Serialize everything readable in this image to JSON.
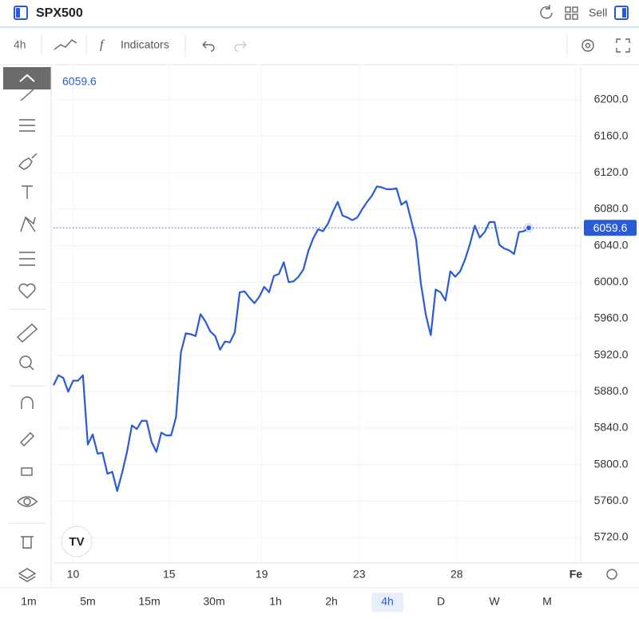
{
  "header": {
    "symbol": "SPX500",
    "sell": "Sell"
  },
  "toolbar": {
    "interval": "4h",
    "indicators": "Indicators"
  },
  "chart_data": {
    "type": "line",
    "x": [
      0,
      1,
      2,
      3,
      4,
      5,
      6,
      7,
      8,
      9,
      10,
      11,
      12,
      13,
      14,
      15,
      16,
      17,
      18,
      19,
      20,
      21,
      22,
      23,
      24,
      25,
      26,
      27,
      28,
      29,
      30,
      31,
      32,
      33,
      34,
      35,
      36,
      37,
      38,
      39,
      40,
      41,
      42,
      43,
      44,
      45,
      46,
      47,
      48,
      49,
      50,
      51,
      52,
      53,
      54,
      55,
      56,
      57,
      58,
      59,
      60,
      61,
      62,
      63,
      64,
      65,
      66,
      67,
      68,
      69,
      70,
      71,
      72,
      73,
      74,
      75,
      76,
      77,
      78,
      79,
      80,
      81,
      82,
      83,
      84,
      85,
      86,
      87,
      88,
      89,
      90,
      91,
      92,
      93,
      94,
      95,
      96,
      97
    ],
    "series": [
      {
        "name": "SPX500",
        "color": "#2a5bd7",
        "values": [
          5887,
          5898,
          5895,
          5880,
          5892,
          5892,
          5898,
          5822,
          5833,
          5812,
          5813,
          5790,
          5792,
          5771,
          5791,
          5814,
          5843,
          5839,
          5848,
          5848,
          5825,
          5814,
          5835,
          5832,
          5832,
          5852,
          5923,
          5944,
          5943,
          5941,
          5965,
          5957,
          5946,
          5941,
          5926,
          5935,
          5934,
          5945,
          5989,
          5990,
          5983,
          5977,
          5984,
          5995,
          5989,
          6007,
          6009,
          6022,
          6000,
          6001,
          6006,
          6014,
          6034,
          6048,
          6058,
          6056,
          6064,
          6077,
          6088,
          6073,
          6071,
          6068,
          6071,
          6080,
          6088,
          6095,
          6105,
          6104,
          6102,
          6102,
          6103,
          6085,
          6089,
          6068,
          6047,
          5998,
          5964,
          5942,
          5992,
          5989,
          5980,
          6012,
          6006,
          6012,
          6025,
          6042,
          6062,
          6049,
          6055,
          6066,
          6066,
          6041,
          6037,
          6035,
          6031,
          6055,
          6056,
          6059.6
        ]
      }
    ],
    "xlim": [
      0,
      107.6
    ],
    "xticks": [
      {
        "value": 4,
        "label": "10"
      },
      {
        "value": 23.6,
        "label": "15"
      },
      {
        "value": 42.5,
        "label": "19"
      },
      {
        "value": 62.4,
        "label": "23"
      },
      {
        "value": 82.3,
        "label": "28"
      },
      {
        "value": 106.6,
        "label": "Fe"
      }
    ],
    "ylim": [
      5692,
      6236.8
    ],
    "yticks": [
      {
        "value": 5720,
        "label": "5720.0"
      },
      {
        "value": 5760,
        "label": "5760.0"
      },
      {
        "value": 5800,
        "label": "5800.0"
      },
      {
        "value": 5840,
        "label": "5840.0"
      },
      {
        "value": 5880,
        "label": "5880.0"
      },
      {
        "value": 5920,
        "label": "5920.0"
      },
      {
        "value": 5960,
        "label": "5960.0"
      },
      {
        "value": 6000,
        "label": "6000.0"
      },
      {
        "value": 6040,
        "label": "6040.0"
      },
      {
        "value": 6080,
        "label": "6080.0"
      },
      {
        "value": 6120,
        "label": "6120.0"
      },
      {
        "value": 6160,
        "label": "6160.0"
      },
      {
        "value": 6200,
        "label": "6200.0"
      }
    ],
    "grid": true
  },
  "timeframes": [
    "1m",
    "5m",
    "15m",
    "30m",
    "1h",
    "2h",
    "4h",
    "D",
    "W",
    "M"
  ],
  "active_timeframe": 6
}
